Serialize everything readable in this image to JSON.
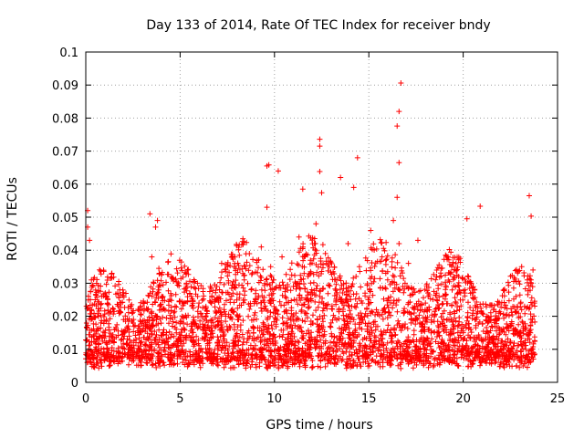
{
  "chart_data": {
    "type": "scatter",
    "title": "Day 133 of 2014, Rate Of TEC Index for receiver bndy",
    "xlabel": "GPS time / hours",
    "ylabel": "ROTI / TECUs",
    "xlim": [
      0,
      25
    ],
    "ylim": [
      0,
      0.1
    ],
    "xticks": [
      0,
      5,
      10,
      15,
      20,
      25
    ],
    "xtick_labels": [
      "0",
      "5",
      "10",
      "15",
      "20",
      "25"
    ],
    "yticks": [
      0,
      0.01,
      0.02,
      0.03,
      0.04,
      0.05,
      0.06,
      0.07,
      0.08,
      0.09,
      0.1
    ],
    "ytick_labels": [
      "0",
      "0.01",
      "0.02",
      "0.03",
      "0.04",
      "0.05",
      "0.06",
      "0.07",
      "0.08",
      "0.09",
      "0.1"
    ],
    "grid": true,
    "marker": "+",
    "marker_color": "#ff0000",
    "note": "Dense cloud of several thousand points (approximately 0.004–0.04 TECU) across 0–23.8 h; individual notable outliers listed in series.",
    "series": [
      {
        "name": "ROTI",
        "x": [
          0.1,
          0.2,
          0.3,
          0.5,
          0.8,
          1.0,
          1.2,
          1.5,
          1.8,
          2.0,
          2.3,
          2.6,
          2.9,
          3.2,
          3.5,
          3.7,
          3.9,
          4.2,
          4.5,
          4.8,
          5.1,
          5.4,
          5.7,
          6.0,
          6.3,
          6.6,
          6.9,
          7.2,
          7.5,
          7.8,
          8.1,
          8.4,
          8.7,
          9.0,
          9.3,
          9.6,
          9.8,
          10.1,
          10.4,
          10.7,
          11.0,
          11.3,
          11.6,
          11.9,
          12.2,
          12.4,
          12.7,
          13.0,
          13.3,
          13.6,
          13.9,
          14.2,
          14.5,
          14.8,
          15.1,
          15.4,
          15.7,
          16.0,
          16.3,
          16.5,
          16.6,
          16.8,
          17.1,
          17.4,
          17.7,
          18.0,
          18.3,
          18.6,
          18.9,
          19.2,
          19.5,
          19.8,
          20.1,
          20.4,
          20.7,
          21.0,
          21.3,
          21.6,
          21.9,
          22.2,
          22.5,
          22.8,
          23.1,
          23.4,
          23.7,
          23.5,
          23.6,
          20.2,
          20.9,
          16.5,
          16.6,
          16.6,
          16.7,
          12.4,
          12.4,
          12.4,
          12.5,
          14.4,
          9.6,
          9.7,
          10.2,
          0.1,
          3.4,
          3.8,
          11.5,
          13.5,
          14.2,
          17.6,
          19.4
        ],
        "y": [
          0.052,
          0.043,
          0.031,
          0.025,
          0.018,
          0.015,
          0.021,
          0.012,
          0.028,
          0.019,
          0.014,
          0.009,
          0.022,
          0.017,
          0.038,
          0.047,
          0.033,
          0.012,
          0.009,
          0.015,
          0.011,
          0.008,
          0.018,
          0.024,
          0.013,
          0.029,
          0.021,
          0.036,
          0.016,
          0.027,
          0.019,
          0.031,
          0.014,
          0.025,
          0.041,
          0.053,
          0.035,
          0.022,
          0.038,
          0.017,
          0.029,
          0.044,
          0.021,
          0.033,
          0.048,
          0.026,
          0.039,
          0.018,
          0.031,
          0.024,
          0.042,
          0.019,
          0.035,
          0.027,
          0.046,
          0.022,
          0.038,
          0.031,
          0.049,
          0.056,
          0.042,
          0.029,
          0.036,
          0.021,
          0.018,
          0.024,
          0.015,
          0.027,
          0.012,
          0.019,
          0.032,
          0.022,
          0.028,
          0.016,
          0.013,
          0.021,
          0.018,
          0.014,
          0.024,
          0.011,
          0.017,
          0.026,
          0.022,
          0.031,
          0.034,
          0.0565,
          0.0503,
          0.0495,
          0.0533,
          0.0776,
          0.082,
          0.0665,
          0.0906,
          0.0736,
          0.0715,
          0.0638,
          0.0574,
          0.068,
          0.0655,
          0.0658,
          0.064,
          0.047,
          0.051,
          0.049,
          0.0585,
          0.062,
          0.059,
          0.043,
          0.035
        ]
      }
    ]
  }
}
